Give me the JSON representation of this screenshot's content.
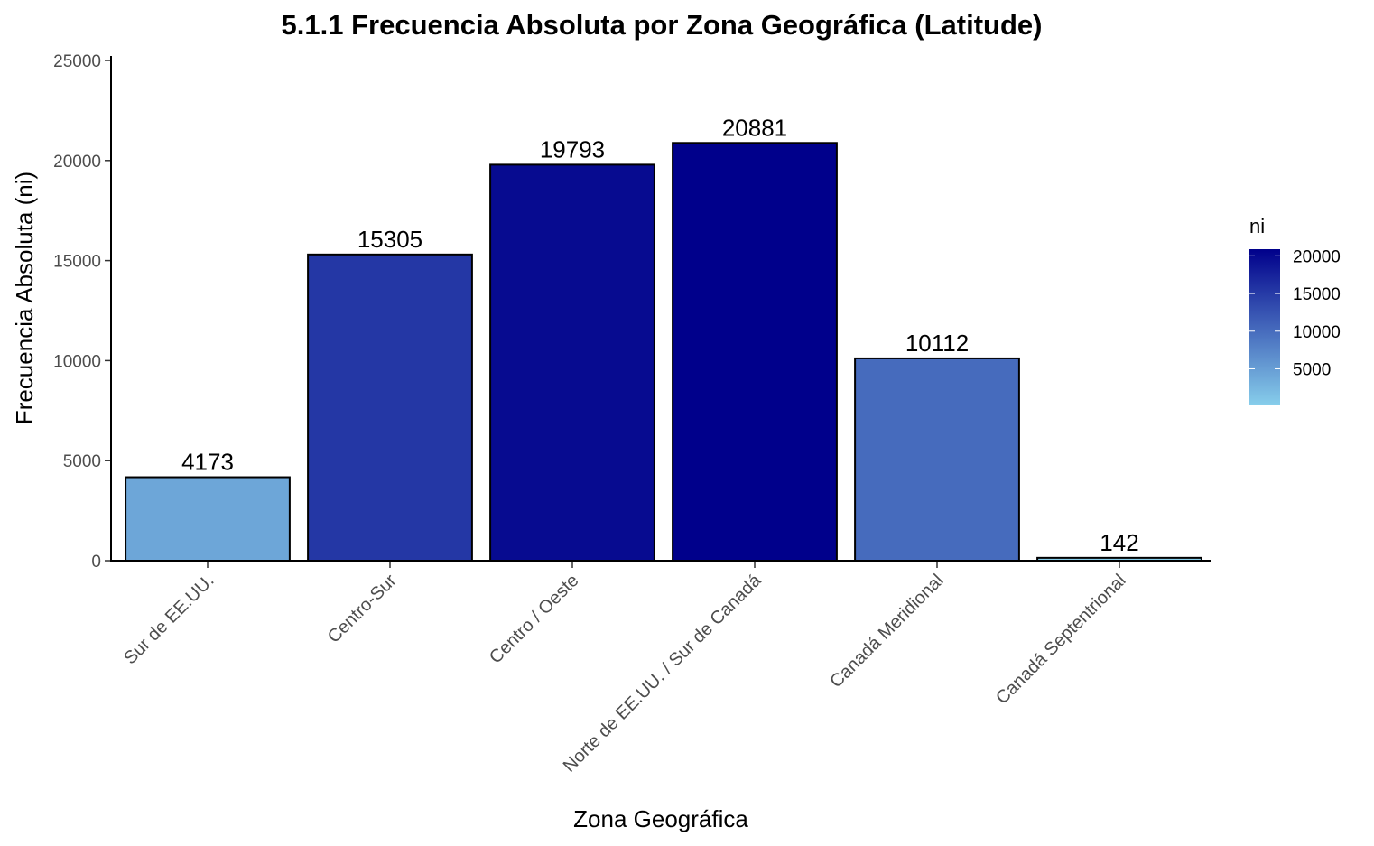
{
  "chart_data": {
    "type": "bar",
    "title": "5.1.1 Frecuencia Absoluta por Zona Geográfica (Latitude)",
    "xlabel": "Zona Geográfica",
    "ylabel": "Frecuencia Absoluta (ni)",
    "categories": [
      "Sur de EE.UU.",
      "Centro-Sur",
      "Centro / Oeste",
      "Norte de EE.UU. / Sur de Canadá",
      "Canadá Meridional",
      "Canadá Septentrional"
    ],
    "values": [
      4173,
      15305,
      19793,
      20881,
      10112,
      142
    ],
    "value_labels": [
      "4173",
      "15305",
      "19793",
      "20881",
      "10112",
      "142"
    ],
    "ylim": [
      0,
      25000
    ],
    "yticks": [
      0,
      5000,
      10000,
      15000,
      20000,
      25000
    ],
    "ytick_labels": [
      "0",
      "5000",
      "10000",
      "15000",
      "20000",
      "25000"
    ],
    "grid": false,
    "colors": {
      "fill_low": "#87ceeb",
      "fill_high": "#00008b",
      "bar_outline": "#000000"
    },
    "legend": {
      "title": "ni",
      "position": "right",
      "type": "colorbar",
      "range": [
        142,
        20881
      ],
      "ticks": [
        5000,
        10000,
        15000,
        20000
      ],
      "tick_labels": [
        "5000",
        "10000",
        "15000",
        "20000"
      ]
    }
  }
}
